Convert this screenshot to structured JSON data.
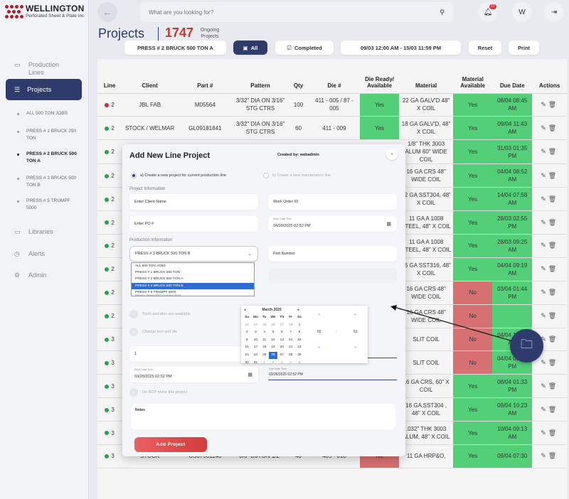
{
  "brand": {
    "title": "WELLINGTON",
    "subtitle": "Perforated Sheet & Plate Inc"
  },
  "sidebar": {
    "production_lines": "Production Lines",
    "projects": "Projects",
    "sub_items": [
      "ALL 500 TON JOBS",
      "PRESS # 1 BRUCK 250 TON",
      "PRESS # 2 BRUCK 500 TON A",
      "PRESS # 3 BRUCK 500 TON B",
      "PRESS # 5 TRUMPF 5000"
    ],
    "libraries": "Libraries",
    "alerts": "Alerts",
    "admin": "Admin"
  },
  "topbar": {
    "search_placeholder": "What are you looking for?",
    "notif_count": "12",
    "avatar": "W"
  },
  "header": {
    "title": "Projects",
    "count": "1747",
    "count_label": "Ongoing Projects",
    "filter_line": "PRESS # 2 BRUCK 500 TON A",
    "all": "All",
    "completed": "Completed",
    "date_range": "09/03 12:00 AM - 15/03 11:59 PM",
    "reset": "Reset",
    "print": "Print"
  },
  "table": {
    "headers": [
      "Line",
      "Client",
      "Part #",
      "Pattern",
      "Qty",
      "Die #",
      "Die Ready/ Available",
      "Material",
      "Material Available",
      "Due Date",
      "Actions"
    ],
    "rows": [
      {
        "line": "2",
        "dot": "red",
        "client": "JBL FAB",
        "part": "M05564",
        "pattern": "3/32\" DIA ON 3/16\" STG CTRS",
        "qty": "100",
        "die": "411 - 005 / 87 - 005",
        "die_ready": "Yes",
        "material": "22 GA GALV'D 48\" X COIL",
        "mat_avail": "Yes",
        "due": "08/04 08:45 AM"
      },
      {
        "line": "2",
        "dot": "green",
        "client": "STOCK / WELMAR",
        "part": "GL09181841",
        "pattern": "3/32\" DIA ON 3/16\" STG CTRS",
        "qty": "60",
        "die": "411 - 009",
        "die_ready": "Yes",
        "material": "18 GA GALV'D, 48\" X COIL",
        "mat_avail": "Yes",
        "due": "09/04 11:43 AM"
      },
      {
        "line": "2",
        "dot": "green",
        "client": "",
        "part": "",
        "pattern": "",
        "qty": "",
        "die": "",
        "die_ready": "",
        "material": "1/8\" THK 3003 ALUM 60\" WIDE COIL",
        "mat_avail": "Yes",
        "due": "31/03 01:35 PM"
      },
      {
        "line": "2",
        "dot": "green",
        "client": "",
        "part": "",
        "pattern": "",
        "qty": "",
        "die": "",
        "die_ready": "",
        "material": "16 GA CRS 48\" WIDE COIL",
        "mat_avail": "Yes",
        "due": "04/04 08:52 AM"
      },
      {
        "line": "2",
        "dot": "green",
        "client": "",
        "part": "",
        "pattern": "",
        "qty": "",
        "die": "",
        "die_ready": "",
        "material": "22 GA SST304, 48\" X COIL",
        "mat_avail": "Yes",
        "due": "14/04 07:58 AM"
      },
      {
        "line": "2",
        "dot": "green",
        "client": "",
        "part": "",
        "pattern": "",
        "qty": "",
        "die": "",
        "die_ready": "",
        "material": "11 GA A 1008 STEEL, 48\" X COIL",
        "mat_avail": "Yes",
        "due": "28/03 02:55 PM"
      },
      {
        "line": "2",
        "dot": "green",
        "client": "",
        "part": "",
        "pattern": "",
        "qty": "",
        "die": "",
        "die_ready": "",
        "material": "11 GA A 1008 STEEL, 48\" X COIL",
        "mat_avail": "Yes",
        "due": "28/03 09:25 AM"
      },
      {
        "line": "2",
        "dot": "green",
        "client": "",
        "part": "",
        "pattern": "",
        "qty": "",
        "die": "",
        "die_ready": "",
        "material": "16 GA SST316, 48\" X COIL",
        "mat_avail": "Yes",
        "due": "04/04 09:19 AM"
      },
      {
        "line": "2",
        "dot": "green",
        "client": "",
        "part": "",
        "pattern": "",
        "qty": "",
        "die": "",
        "die_ready": "",
        "material": "16 GA CRS 48\" WIDE COIL",
        "mat_avail": "No",
        "due": "03/04 01:44 PM"
      },
      {
        "line": "2",
        "dot": "green",
        "client": "",
        "part": "",
        "pattern": "",
        "qty": "",
        "die": "",
        "die_ready": "",
        "material": "16 GA CRS 48\" WIDE COIL",
        "mat_avail": "No",
        "due": ""
      },
      {
        "line": "3",
        "dot": "green",
        "client": "",
        "part": "",
        "pattern": "",
        "qty": "",
        "die": "",
        "die_ready": "",
        "material": "SLIT COIL",
        "mat_avail": "No",
        "due": "04/04 10:07 AM"
      },
      {
        "line": "3",
        "dot": "green",
        "client": "",
        "part": "",
        "pattern": "",
        "qty": "",
        "die": "",
        "die_ready": "",
        "material": "SLIT COIL",
        "mat_avail": "No",
        "due": "04/04 01:53 PM"
      },
      {
        "line": "3",
        "dot": "green",
        "client": "",
        "part": "",
        "pattern": "",
        "qty": "",
        "die": "",
        "die_ready": "",
        "material": "16 GA CRS, 60\" X COIL",
        "mat_avail": "Yes",
        "due": "08/04 01:33 PM"
      },
      {
        "line": "3",
        "dot": "green",
        "client": "",
        "part": "",
        "pattern": "",
        "qty": "",
        "die": "",
        "die_ready": "",
        "material": "16 GA SST304 , 48\" X COIL",
        "mat_avail": "Yes",
        "due": "09/04 10:23 AM"
      },
      {
        "line": "3",
        "dot": "green",
        "client": "METALTECH",
        "part": "M05221",
        "pattern": "3/32\" DIA ON 5/32\" STG CTRS",
        "qty": "20",
        "die": "410 - 005",
        "die_ready": "No",
        "material": ".032\" THK 3003 ALUM, 48\" X COIL",
        "mat_avail": "Yes",
        "due": "10/04 09:13 AM"
      },
      {
        "line": "3",
        "dot": "green",
        "client": "STOCK",
        "part": "CS37501148",
        "pattern": "3/8\" DIA ON 1/2\"",
        "qty": "40",
        "die": "405 - 018",
        "die_ready": "No",
        "material": "11 GA HRP&O,",
        "mat_avail": "Yes",
        "due": "09/04 07:30"
      }
    ]
  },
  "modal": {
    "title": "Add New Line Project",
    "created_by": "Created by: webadmin",
    "close": "×",
    "radio_new": "a) Create a new project for current production line",
    "radio_maint": "b) Create a new maintenance line",
    "project_info": "Project Information",
    "client_ph": "Enter Client Name",
    "work_order_ph": "Work Order ID",
    "po_ph": "Enter PO #",
    "start_label": "Start Date Time",
    "start_value": "04/09/2025 02:52 PM",
    "production_info": "Production Information",
    "line_selected": "PRESS # 3 BRUCK 500 TON B",
    "line_options": [
      "ALL 500 TON JOBS",
      "PRESS # 1 BRUCK 250 TON",
      "PRESS # 2 BRUCK 500 TON A",
      "PRESS # 3 BRUCK 500 TON B",
      "PRESS # 5 TRUMPF 5000"
    ],
    "part_number_ph": "Part Number",
    "part_label_hint": "Please Select Part Number First",
    "tools_available": "Tools and dies are available",
    "change_tool": "Change tool and die",
    "qty_value": "1",
    "end_label": "Start Date Time",
    "end_value": "03/26/2025 02:52 PM",
    "due_label": "Due Date Time",
    "due_value": "03/26/2025 02:52 PM",
    "do_not_move": "Do NOT move this project",
    "notes_label": "Notes",
    "add_button": "Add Project"
  },
  "calendar": {
    "month": "March 2025",
    "weekdays": [
      "Su",
      "Mo",
      "Tu",
      "We",
      "Th",
      "Fr",
      "Sa"
    ],
    "days": [
      "23",
      "24",
      "25",
      "26",
      "27",
      "28",
      "1",
      "2",
      "3",
      "4",
      "5",
      "6",
      "7",
      "8",
      "9",
      "10",
      "11",
      "12",
      "13",
      "14",
      "15",
      "16",
      "17",
      "18",
      "19",
      "20",
      "21",
      "22",
      "23",
      "24",
      "25",
      "26",
      "27",
      "28",
      "29",
      "30",
      "31",
      "1",
      "2",
      "3",
      "4",
      "5"
    ],
    "muted_first": 6,
    "muted_last_from": 37,
    "today_index": 31,
    "hour": "02",
    "minute": "52"
  }
}
